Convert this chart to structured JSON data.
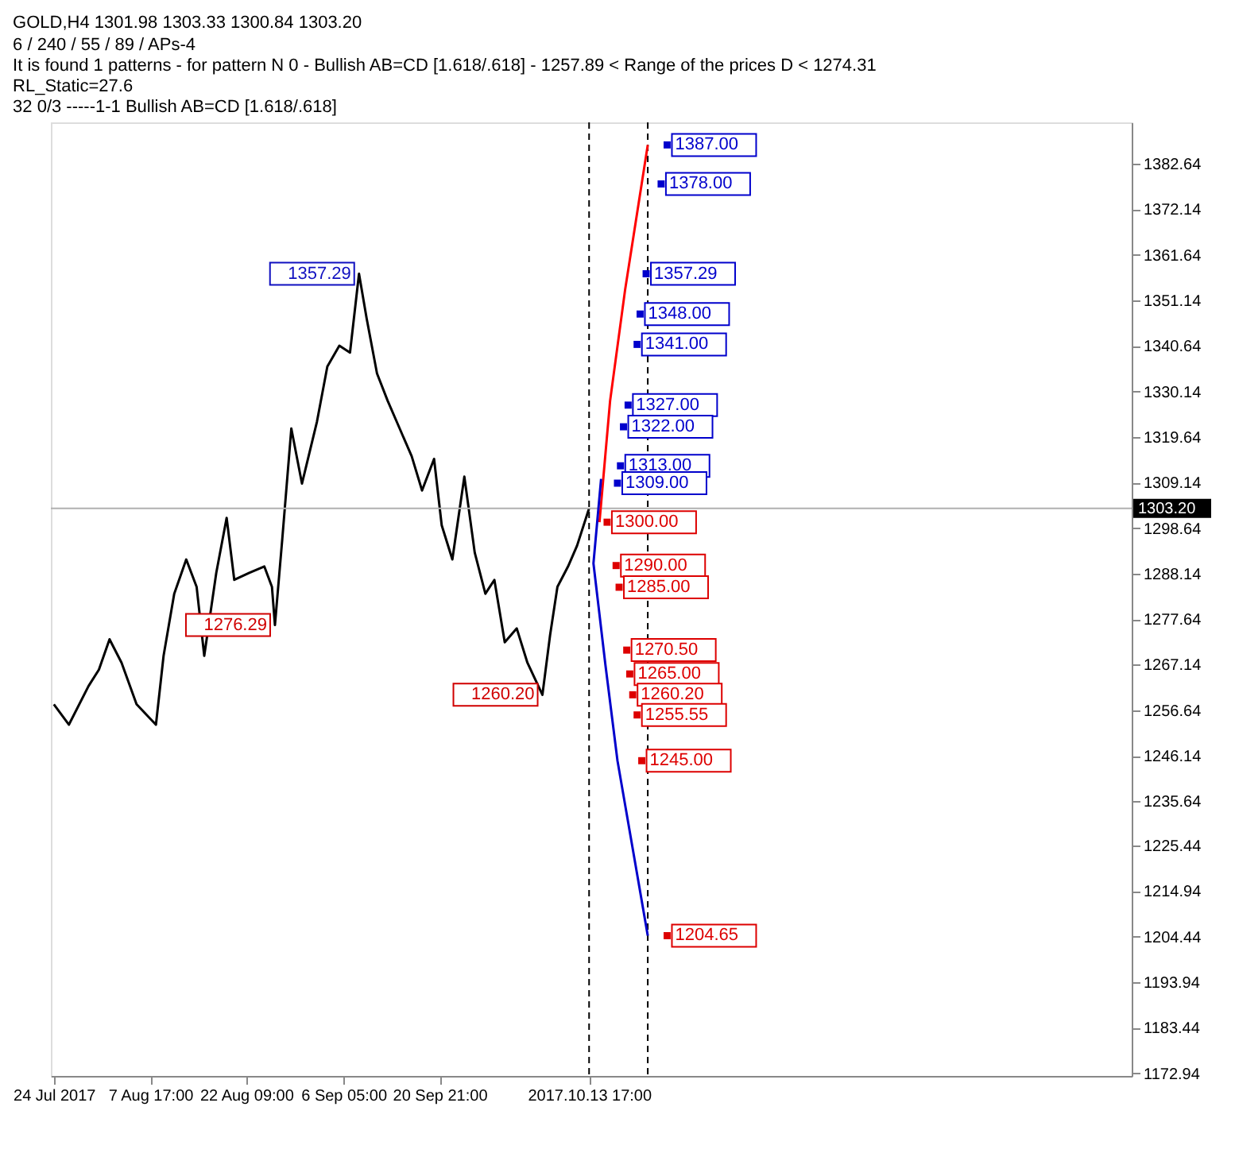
{
  "chart_data": {
    "type": "line",
    "title": "GOLD,H4 1301.98 1303.33 1300.84 1303.20",
    "annotations": [
      "6 / 240 / 55 / 89 / APs-4",
      "It is found 1 patterns  -  for pattern N 0 - Bullish AB=CD [1.618/.618] - 1257.89 < Range of the prices D < 1274.31",
      "RL_Static=27.6",
      "32     0/3     -----1-1     Bullish AB=CD [1.618/.618]",
      {
        "text": "1357.29",
        "x": "2017-09-08T14:00",
        "y": 1357.29
      },
      {
        "text": "1276.29",
        "x": "2017-08-26T18:00",
        "y": 1276.29
      },
      {
        "text": "1260.20",
        "x": "2017-10-06T14:00",
        "y": 1260.2
      }
    ],
    "series": [
      {
        "color": "#000000",
        "x": [
          "2017-07-24T00:00",
          "2017-07-26T07:00",
          "2017-07-29T07:00",
          "2017-07-30T21:00",
          "2017-08-01T12:00",
          "2017-08-03T08:00",
          "2017-08-05T15:00",
          "2017-08-08T14:00",
          "2017-08-09T18:00",
          "2017-08-11T09:00",
          "2017-08-13T05:00",
          "2017-08-14T19:00",
          "2017-08-15T23:00",
          "2017-08-17T19:00",
          "2017-08-19T09:00",
          "2017-08-20T13:00",
          "2017-08-22T20:00",
          "2017-08-25T03:00",
          "2017-08-26T07:00",
          "2017-08-26T18:00",
          "2017-08-27T21:00",
          "2017-08-29T06:00",
          "2017-08-30T21:00",
          "2017-09-02T04:00",
          "2017-09-03T18:00",
          "2017-09-05T14:00",
          "2017-09-07T05:00",
          "2017-09-08T14:00",
          "2017-09-09T18:00",
          "2017-09-11T08:00",
          "2017-09-12T23:00",
          "2017-09-14T19:00",
          "2017-09-16T15:00",
          "2017-09-18T05:00",
          "2017-09-20T01:00",
          "2017-09-21T05:00",
          "2017-09-22T20:00",
          "2017-09-24T16:00",
          "2017-09-26T06:00",
          "2017-09-27T21:00",
          "2017-09-29T06:00",
          "2017-09-30T20:00",
          "2017-10-02T16:00",
          "2017-10-04T07:00",
          "2017-10-06T14:00",
          "2017-10-07T18:00",
          "2017-10-08T21:00",
          "2017-10-10T12:00",
          "2017-10-11T21:00",
          "2017-10-13T17:00"
        ],
        "values": [
          1258.0,
          1253.3,
          1262.2,
          1266.0,
          1273.0,
          1267.6,
          1258.0,
          1253.3,
          1269.2,
          1283.5,
          1291.4,
          1285.1,
          1269.2,
          1288.3,
          1301.0,
          1286.7,
          1288.3,
          1289.8,
          1285.1,
          1276.29,
          1296.2,
          1321.6,
          1308.9,
          1323.2,
          1335.9,
          1340.7,
          1339.1,
          1357.29,
          1347.0,
          1334.3,
          1328.0,
          1321.6,
          1315.2,
          1307.3,
          1314.6,
          1299.3,
          1291.4,
          1310.5,
          1293.0,
          1283.5,
          1286.7,
          1272.3,
          1275.5,
          1267.6,
          1260.2,
          1273.9,
          1285.1,
          1289.8,
          1294.6,
          1303.2
        ]
      },
      {
        "color": "#ff0000",
        "x": [
          "2017-10-15T07:00",
          "2017-10-16T22:00",
          "2017-10-19T05:00",
          "2017-10-22T16:00"
        ],
        "values": [
          1300.0,
          1328.0,
          1353.6,
          1387.0
        ]
      },
      {
        "color": "#0000cc",
        "x": [
          "2017-10-15T13:00",
          "2017-10-14T09:00",
          "2017-10-16T05:00",
          "2017-10-18T01:00",
          "2017-10-22T16:00"
        ],
        "values": [
          1310.0,
          1290.5,
          1267.0,
          1245.0,
          1204.65
        ]
      },
      {
        "type": "scatter",
        "marker": "square",
        "color": "#0000cc",
        "x": [
          "2017-10-25T15:00",
          "2017-10-24T17:00",
          "2017-10-22T10:00",
          "2017-10-21T12:00",
          "2017-10-21T01:00",
          "2017-10-19T16:00",
          "2017-10-18T23:00",
          "2017-10-18T12:00",
          "2017-10-18T01:00"
        ],
        "values": [
          1387.0,
          1378.0,
          1357.29,
          1348.0,
          1341.0,
          1327.0,
          1322.0,
          1313.0,
          1309.0
        ],
        "value_labels": [
          "1387.00",
          "1378.00",
          "1357.29",
          "1348.00",
          "1341.00",
          "1327.00",
          "1322.00",
          "1313.00",
          "1309.00"
        ]
      },
      {
        "type": "scatter",
        "marker": "square",
        "color": "#dd0000",
        "x": [
          "2017-10-16T11:00",
          "2017-10-17T20:00",
          "2017-10-18T07:00",
          "2017-10-19T11:00",
          "2017-10-19T22:00",
          "2017-10-20T09:00",
          "2017-10-21T01:00",
          "2017-10-21T18:00",
          "2017-10-25T15:00"
        ],
        "values": [
          1300.0,
          1290.0,
          1285.0,
          1270.5,
          1265.0,
          1260.2,
          1255.55,
          1245.0,
          1204.65
        ],
        "value_labels": [
          "1300.00",
          "1290.00",
          "1285.00",
          "1270.50",
          "1265.00",
          "1260.20",
          "1255.55",
          "1245.00",
          "1204.65"
        ]
      }
    ],
    "xlim": [
      "2017-07-23T13:00",
      "2018-01-04T13:00"
    ],
    "ylim": [
      1172.3,
      1392.2
    ],
    "xticks": [
      {
        "value": "2017-07-24T00:00",
        "label": "24 Jul 2017"
      },
      {
        "value": "2017-08-07T17:00",
        "label": "7 Aug 17:00"
      },
      {
        "value": "2017-08-22T09:00",
        "label": "22 Aug 09:00"
      },
      {
        "value": "2017-09-06T05:00",
        "label": "6 Sep 05:00"
      },
      {
        "value": "2017-09-20T21:00",
        "label": "20 Sep 21:00"
      },
      {
        "value": "2017-10-13T17:00",
        "label": "2017.10.13 17:00"
      }
    ],
    "yticks": [
      1172.94,
      1183.44,
      1193.94,
      1204.44,
      1214.94,
      1225.44,
      1235.64,
      1246.14,
      1256.64,
      1267.14,
      1277.64,
      1288.14,
      1298.64,
      1309.14,
      1319.64,
      1330.14,
      1340.64,
      1351.14,
      1361.64,
      1372.14,
      1382.64
    ],
    "ref_lines": [
      {
        "axis": "y",
        "value": 1303.2,
        "label": "1303.20",
        "color": "#b0b0b0"
      },
      {
        "axis": "x",
        "value": "2017-10-13T17:00",
        "color": "#000000",
        "line_style": "dashed"
      },
      {
        "axis": "x",
        "value": "2017-10-22T16:00",
        "color": "#000000",
        "line_style": "dashed"
      }
    ]
  }
}
